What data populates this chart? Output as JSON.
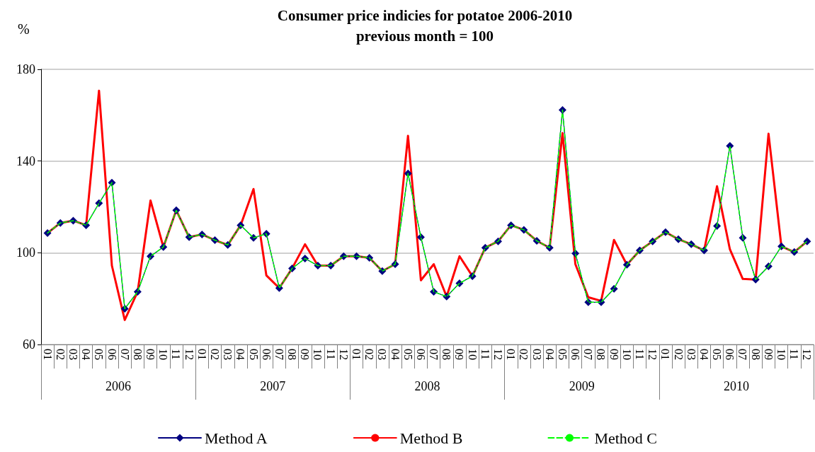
{
  "chart_data": {
    "type": "line",
    "title": "Consumer price indicies for potatoe 2006-2010",
    "subtitle": "previous month = 100",
    "ylabel": "%",
    "categories": [
      "01",
      "02",
      "03",
      "04",
      "05",
      "06",
      "07",
      "08",
      "09",
      "10",
      "11",
      "12",
      "01",
      "02",
      "03",
      "04",
      "05",
      "06",
      "07",
      "08",
      "09",
      "10",
      "11",
      "12",
      "01",
      "02",
      "03",
      "04",
      "05",
      "06",
      "07",
      "08",
      "09",
      "10",
      "11",
      "12",
      "01",
      "02",
      "03",
      "04",
      "05",
      "06",
      "07",
      "08",
      "09",
      "10",
      "11",
      "12",
      "01",
      "02",
      "03",
      "04",
      "05",
      "06",
      "07",
      "08",
      "09",
      "10",
      "11",
      "12"
    ],
    "annotations": [
      "2006",
      "2007",
      "2008",
      "2009",
      "2010"
    ],
    "ylim": [
      60,
      180
    ],
    "yticks": [
      60,
      100,
      140,
      180
    ],
    "grid": "y",
    "legend": "bottom",
    "series": [
      {
        "name": "Method A",
        "color": "#000080",
        "marker": "diamond",
        "line_style": "solid",
        "values": [
          108.6,
          113,
          114,
          112,
          121.6,
          130.6,
          75.6,
          83,
          98.5,
          102.5,
          118.5,
          106.8,
          108,
          105.5,
          103.4,
          112,
          106.5,
          108.3,
          84.6,
          93.2,
          97.5,
          94.4,
          94.4,
          98.5,
          98.5,
          97.8,
          92,
          95,
          134.6,
          106.8,
          83,
          80.9,
          86.7,
          89.8,
          102.2,
          105,
          112,
          110,
          105.2,
          102.2,
          162.3,
          99.7,
          78.4,
          78.4,
          84.3,
          94.8,
          101,
          105,
          109,
          105.9,
          103.7,
          101,
          111.7,
          146.6,
          106.5,
          88.3,
          94.1,
          102.8,
          100.3,
          105
        ]
      },
      {
        "name": "Method B",
        "color": "#ff0000",
        "marker": "none",
        "line_style": "solid",
        "values": [
          108.6,
          113,
          114,
          112,
          170.7,
          94.4,
          70.7,
          83,
          122.8,
          102.5,
          118.5,
          106.8,
          108,
          105.5,
          103.4,
          112,
          127.8,
          90.1,
          84.6,
          93.2,
          103.7,
          94.4,
          94.4,
          98.5,
          98.5,
          97.8,
          92,
          95,
          151,
          88,
          95,
          80.9,
          98.5,
          89.8,
          102.2,
          105,
          112,
          110,
          105.2,
          102.2,
          152.2,
          95,
          80.6,
          79,
          105.6,
          94.8,
          101,
          105,
          109,
          105.9,
          103.7,
          101,
          129,
          101.5,
          88.6,
          88.3,
          151.9,
          102.8,
          100.3,
          105
        ]
      },
      {
        "name": "Method C",
        "color": "#00ff00",
        "marker": "none",
        "line_style": "dashed",
        "values": [
          108.6,
          113,
          114,
          112,
          121.6,
          130.6,
          75.6,
          83,
          98.5,
          102.5,
          118.5,
          106.8,
          108,
          105.5,
          103.4,
          112,
          106.5,
          108.3,
          84.6,
          93.2,
          97.5,
          94.4,
          94.4,
          98.5,
          98.5,
          97.8,
          92,
          95,
          134.6,
          106.8,
          83,
          80.9,
          86.7,
          89.8,
          102.2,
          105,
          112,
          110,
          105.2,
          102.2,
          162.3,
          99.7,
          78.4,
          78.4,
          84.3,
          94.8,
          101,
          105,
          109,
          105.9,
          103.7,
          101,
          111.7,
          146.6,
          106.5,
          88.3,
          94.1,
          102.8,
          100.3,
          105
        ]
      }
    ]
  }
}
